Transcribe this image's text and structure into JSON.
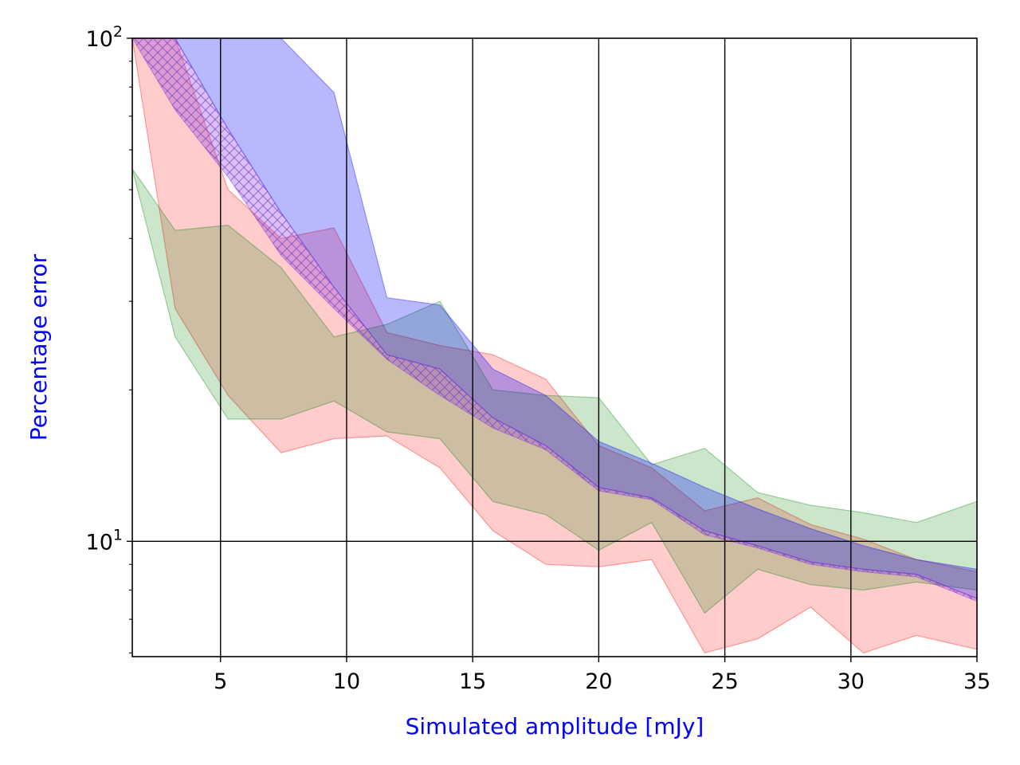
{
  "chart_data": {
    "type": "area",
    "xlabel": "Simulated amplitude [mJy]",
    "ylabel": "Percentage error",
    "label_color": "#0000ff",
    "xlim": [
      1.5,
      35
    ],
    "ylim": [
      5.9,
      100
    ],
    "yscale": "log",
    "grid": true,
    "x_ticks": [
      5,
      10,
      15,
      20,
      25,
      30,
      35
    ],
    "x_tick_labels": [
      "5",
      "10",
      "15",
      "20",
      "25",
      "30",
      "35"
    ],
    "y_major_ticks": [
      10,
      100
    ],
    "y_tick_labels": [
      {
        "base": "10",
        "exp": "1"
      },
      {
        "base": "10",
        "exp": "2"
      }
    ],
    "y_minor_ticks": [
      6,
      7,
      8,
      9,
      20,
      30,
      40,
      50,
      60,
      70,
      80,
      90
    ],
    "x": [
      1.5,
      3.2,
      5.3,
      7.4,
      9.5,
      11.6,
      13.7,
      15.8,
      17.9,
      20.0,
      22.1,
      24.2,
      26.3,
      28.4,
      30.5,
      32.6,
      35.0
    ],
    "series": [
      {
        "name": "red band",
        "color": "#ff0000",
        "opacity": 0.2,
        "hatched": false,
        "upper": [
          100,
          100,
          50,
          40,
          42,
          26,
          24.5,
          23.5,
          21,
          15.5,
          14,
          11.5,
          12.2,
          10.8,
          10.1,
          9.2,
          8.7
        ],
        "lower": [
          100,
          29,
          19.5,
          15,
          16,
          16.2,
          14,
          10.5,
          9,
          8.9,
          9.2,
          6,
          6.4,
          7.4,
          6,
          6.5,
          6.1
        ]
      },
      {
        "name": "green band",
        "color": "#008000",
        "opacity": 0.2,
        "hatched": false,
        "upper": [
          55,
          41.5,
          42.5,
          35,
          25.5,
          27,
          30,
          20,
          19.5,
          19.3,
          14.2,
          15.3,
          12.5,
          11.8,
          11.4,
          10.9,
          12
        ],
        "lower": [
          55,
          25.5,
          17.5,
          17.5,
          19,
          16.5,
          16,
          12,
          11.3,
          9.6,
          10.9,
          7.2,
          8.8,
          8.2,
          8.0,
          8.3,
          8.0
        ]
      },
      {
        "name": "blue band",
        "color": "#0000ff",
        "opacity": 0.28,
        "hatched": false,
        "upper": [
          100,
          100,
          100,
          100,
          78,
          30.5,
          29.5,
          22,
          19.5,
          15.8,
          14.3,
          12.8,
          11.6,
          10.6,
          9.8,
          9.2,
          8.8
        ],
        "lower": [
          100,
          100,
          66,
          45,
          32,
          23.5,
          22,
          17.6,
          15.5,
          12.8,
          12.2,
          10.5,
          9.8,
          9.1,
          8.8,
          8.6,
          7.7
        ]
      },
      {
        "name": "purple hatched band",
        "color": "#8a2be2",
        "opacity": 0.3,
        "hatched": true,
        "upper": [
          100,
          100,
          66,
          45,
          32,
          23.5,
          22,
          17.6,
          15.5,
          12.8,
          12.2,
          10.5,
          9.8,
          9.1,
          8.8,
          8.6,
          7.7
        ],
        "lower": [
          100,
          72,
          53,
          37,
          29,
          23,
          19.5,
          16.8,
          15.2,
          12.6,
          12.1,
          10.3,
          9.7,
          9.0,
          8.7,
          8.5,
          7.6
        ]
      }
    ]
  }
}
